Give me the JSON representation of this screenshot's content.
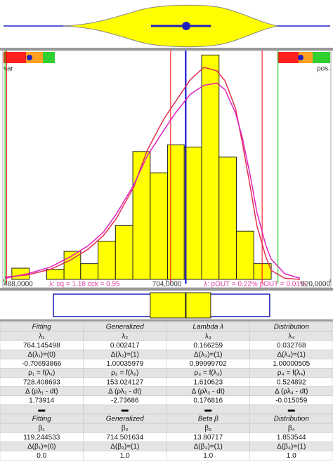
{
  "chart_data": {
    "type": "histogram",
    "bins": [
      499,
      522,
      545,
      568,
      590,
      613,
      636,
      659,
      682,
      705,
      727,
      750,
      773,
      796,
      819,
      842
    ],
    "values": [
      1,
      0,
      0.9,
      2.5,
      1.4,
      3.4,
      4.8,
      11.4,
      9.5,
      12,
      11.8,
      20,
      10.9,
      4.3,
      1.4
    ],
    "color": "#ffff00",
    "xlim": [
      488,
      920
    ],
    "xticks": [
      {
        "value": 488,
        "label": "488,0000"
      },
      {
        "value": 704,
        "label": "704,0000"
      },
      {
        "value": 920,
        "label": "920,0000"
      }
    ],
    "ylim": [
      0,
      20.4
    ],
    "curves": [
      {
        "color": "#e03050",
        "x": [
          490,
          520,
          550,
          576,
          600,
          620,
          637,
          660,
          678,
          700,
          715,
          735,
          753,
          770,
          781,
          795,
          804,
          815,
          823,
          835,
          842,
          860,
          880
        ],
        "values": [
          0.2,
          0.4,
          0.9,
          1.7,
          2.7,
          3.9,
          5.4,
          8.2,
          11.5,
          14.3,
          15.8,
          17.8,
          18.9,
          18.6,
          17.7,
          15.2,
          12.1,
          8,
          4.8,
          2,
          0.8,
          0.1,
          0
        ]
      },
      {
        "color": "#e020c0",
        "x": [
          490,
          520,
          550,
          576,
          600,
          620,
          637,
          660,
          678,
          700,
          715,
          735,
          753,
          770,
          781,
          795,
          804,
          815,
          823,
          835,
          842,
          860,
          880
        ],
        "values": [
          0.1,
          0.5,
          1.1,
          2,
          3,
          4.2,
          5.8,
          8.4,
          11,
          13.3,
          14.8,
          16.5,
          17.3,
          17.5,
          16.9,
          14.8,
          12.6,
          9,
          6,
          3,
          1.8,
          0.5,
          0.1
        ]
      }
    ],
    "vlines": [
      {
        "value": 492,
        "color": "#ff0000"
      },
      {
        "value": 709,
        "color": "#ff0000"
      },
      {
        "value": 830,
        "color": "#ff0000"
      },
      {
        "value": 729,
        "color": "#0000cc"
      },
      {
        "value": 490,
        "color": "#00cc00"
      },
      {
        "value": 851,
        "color": "#00cc00"
      }
    ],
    "boxplot": {
      "whisker_low": 554,
      "q1": 682,
      "median": 729,
      "q3": 762,
      "whisker_high": 840
    },
    "annotations": [
      "λ: cq = 1.18 cck = 0.95",
      "λ: pOUT = 0.22% pOUT = 0.01%"
    ],
    "left_label": "var",
    "right_label": "pos."
  },
  "table": {
    "rows": [
      [
        "Fitting",
        "Generalized",
        "Lambda λ",
        "Distribution"
      ],
      [
        "λ₁",
        "λ₂",
        "λ₃",
        "λ₄"
      ],
      [
        "764.145498",
        "0.002417",
        "0.166259",
        "0.032768"
      ],
      [
        "Δ(λ₁)=(0)",
        "Δ(λ₂)=(1)",
        "Δ(λ₃)=(1)",
        "Δ(λ₄)=(1)"
      ],
      [
        "-0.70693866",
        "1.00035979",
        "0.99999702",
        "1.00000505"
      ],
      [
        "ρ₁ = f(λ₁)",
        "ρ₂ = f(λ₂)",
        "ρ₃ = f(λ₃)",
        "ρ₄ = f(λ₄)"
      ],
      [
        "728.408693",
        "153.024127",
        "1.610623",
        "0.524892"
      ],
      [
        "Δ (ρλ₁ - dt)",
        "Δ (ρλ₂ - dt)",
        "Δ (ρλ₃ - dt)",
        "Δ (ρλ₄ - dt)"
      ],
      [
        "1.73914",
        "-2.73686",
        "0.176816",
        "-0.015059"
      ],
      [
        "▬",
        "▬",
        "▬",
        "▬"
      ],
      [
        "Fitting",
        "Generalized",
        "Beta β",
        "Distribution"
      ],
      [
        "β₁",
        "β₂",
        "β₃",
        "β₄"
      ],
      [
        "119.244533",
        "714.501634",
        "13.80717",
        "1.853544"
      ],
      [
        "Δ(β₁)=(0)",
        "Δ(β₂)=(1)",
        "Δ(β₃)=(1)",
        "Δ(β₄)=(1)"
      ],
      [
        "0.0",
        "1.0",
        "1.0",
        "1.0"
      ]
    ]
  }
}
